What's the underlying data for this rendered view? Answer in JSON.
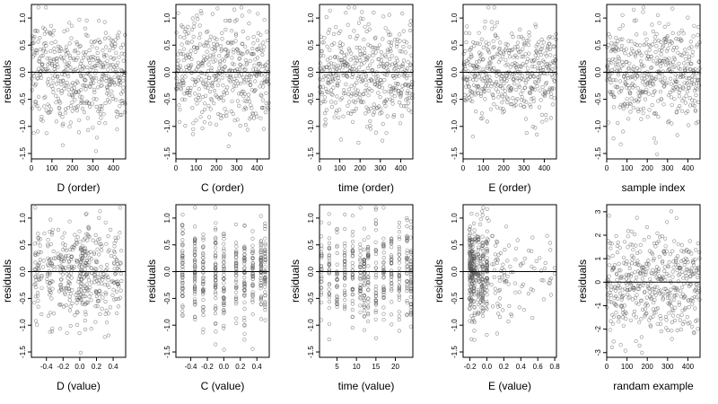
{
  "figure": {
    "layout": "2 rows x 5 columns of residual scatter plots",
    "point_style": "open circles, grey",
    "point_color": "#555555",
    "reference_line": "horizontal line at y = 0",
    "axis_color": "#000000"
  },
  "chart_data": [
    {
      "type": "scatter",
      "panel": 1,
      "xlabel": "D (order)",
      "ylabel": "residuals",
      "x_range": [
        0,
        460
      ],
      "x_ticks": [
        "0",
        "100",
        "200",
        "300",
        "400"
      ],
      "x_tick_values": [
        0,
        100,
        200,
        300,
        400
      ],
      "y_range": [
        -1.6,
        1.25
      ],
      "y_ticks": [
        "-1.5",
        "-1.0",
        "-0.5",
        "0.0",
        "0.5",
        "1.0"
      ],
      "y_tick_values": [
        -1.5,
        -1,
        -0.5,
        0,
        0.5,
        1
      ],
      "zero_line": 0,
      "n_points_approx": 460,
      "x_distribution": "uniform-index",
      "y_spread": 0.45
    },
    {
      "type": "scatter",
      "panel": 2,
      "xlabel": "C (order)",
      "ylabel": "residuals",
      "x_range": [
        0,
        460
      ],
      "x_ticks": [
        "0",
        "100",
        "200",
        "300",
        "400"
      ],
      "x_tick_values": [
        0,
        100,
        200,
        300,
        400
      ],
      "y_range": [
        -1.6,
        1.25
      ],
      "y_ticks": [
        "-1.5",
        "-1.0",
        "-0.5",
        "0.0",
        "0.5",
        "1.0"
      ],
      "y_tick_values": [
        -1.5,
        -1,
        -0.5,
        0,
        0.5,
        1
      ],
      "zero_line": 0,
      "n_points_approx": 460,
      "x_distribution": "uniform-index",
      "y_spread": 0.45
    },
    {
      "type": "scatter",
      "panel": 3,
      "xlabel": "time (order)",
      "ylabel": "residuals",
      "x_range": [
        0,
        460
      ],
      "x_ticks": [
        "0",
        "100",
        "200",
        "300",
        "400"
      ],
      "x_tick_values": [
        0,
        100,
        200,
        300,
        400
      ],
      "y_range": [
        -1.6,
        1.25
      ],
      "y_ticks": [
        "-1.5",
        "-1.0",
        "-0.5",
        "0.0",
        "0.5",
        "1.0"
      ],
      "y_tick_values": [
        -1.5,
        -1,
        -0.5,
        0,
        0.5,
        1
      ],
      "zero_line": 0,
      "n_points_approx": 460,
      "x_distribution": "uniform-index",
      "y_spread": 0.45
    },
    {
      "type": "scatter",
      "panel": 4,
      "xlabel": "E (order)",
      "ylabel": "residuals",
      "x_range": [
        0,
        460
      ],
      "x_ticks": [
        "0",
        "100",
        "200",
        "300",
        "400"
      ],
      "x_tick_values": [
        0,
        100,
        200,
        300,
        400
      ],
      "y_range": [
        -1.6,
        1.25
      ],
      "y_ticks": [
        "-1.5",
        "-1.0",
        "-0.5",
        "0.0",
        "0.5",
        "1.0"
      ],
      "y_tick_values": [
        -1.5,
        -1,
        -0.5,
        0,
        0.5,
        1
      ],
      "zero_line": 0,
      "n_points_approx": 460,
      "x_distribution": "uniform-index",
      "y_spread": 0.45
    },
    {
      "type": "scatter",
      "panel": 5,
      "xlabel": "sample index",
      "ylabel": "residuals",
      "x_range": [
        0,
        460
      ],
      "x_ticks": [
        "0",
        "100",
        "200",
        "300",
        "400"
      ],
      "x_tick_values": [
        0,
        100,
        200,
        300,
        400
      ],
      "y_range": [
        -1.6,
        1.25
      ],
      "y_ticks": [
        "-1.5",
        "-1.0",
        "-0.5",
        "0.0",
        "0.5",
        "1.0"
      ],
      "y_tick_values": [
        -1.5,
        -1,
        -0.5,
        0,
        0.5,
        1
      ],
      "zero_line": 0,
      "n_points_approx": 460,
      "x_distribution": "uniform-index",
      "y_spread": 0.45
    },
    {
      "type": "scatter",
      "panel": 6,
      "xlabel": "D (value)",
      "ylabel": "residuals",
      "x_range": [
        -0.58,
        0.55
      ],
      "x_ticks": [
        "-0.4",
        "-0.2",
        "0.0",
        "0.2",
        "0.4"
      ],
      "x_tick_values": [
        -0.4,
        -0.2,
        0,
        0.2,
        0.4
      ],
      "y_range": [
        -1.6,
        1.25
      ],
      "y_ticks": [
        "-1.5",
        "-1.0",
        "-0.5",
        "0.0",
        "0.5",
        "1.0"
      ],
      "y_tick_values": [
        -1.5,
        -1,
        -0.5,
        0,
        0.5,
        1
      ],
      "zero_line": 0,
      "n_points_approx": 460,
      "x_distribution": "spread-clustered",
      "x_clusters": [
        -0.5,
        -0.35,
        -0.2,
        -0.1,
        0,
        0.05,
        0.1,
        0.2,
        0.3,
        0.45
      ],
      "y_spread": 0.45
    },
    {
      "type": "scatter",
      "panel": 7,
      "xlabel": "C (value)",
      "ylabel": "residuals",
      "x_range": [
        -0.58,
        0.55
      ],
      "x_ticks": [
        "-0.4",
        "-0.2",
        "0.0",
        "0.2",
        "0.4"
      ],
      "x_tick_values": [
        -0.4,
        -0.2,
        0,
        0.2,
        0.4
      ],
      "y_range": [
        -1.6,
        1.25
      ],
      "y_ticks": [
        "-1.5",
        "-1.0",
        "-0.5",
        "0.0",
        "0.5",
        "1.0"
      ],
      "y_tick_values": [
        -1.5,
        -1,
        -0.5,
        0,
        0.5,
        1
      ],
      "zero_line": 0,
      "n_points_approx": 460,
      "x_distribution": "discrete-columns",
      "x_levels": [
        -0.5,
        -0.35,
        -0.25,
        -0.1,
        0,
        0.15,
        0.25,
        0.35,
        0.45,
        0.5
      ],
      "y_spread": 0.45
    },
    {
      "type": "scatter",
      "panel": 8,
      "xlabel": "time (value)",
      "ylabel": "residuals",
      "x_range": [
        0.5,
        24.5
      ],
      "x_ticks": [
        "5",
        "10",
        "15",
        "20"
      ],
      "x_tick_values": [
        5,
        10,
        15,
        20
      ],
      "y_range": [
        -1.6,
        1.25
      ],
      "y_ticks": [
        "-1.5",
        "-1.0",
        "-0.5",
        "0.0",
        "0.5",
        "1.0"
      ],
      "y_tick_values": [
        -1.5,
        -1,
        -0.5,
        0,
        0.5,
        1
      ],
      "zero_line": 0,
      "n_points_approx": 460,
      "x_distribution": "discrete-columns",
      "x_levels": [
        1,
        3,
        5,
        7,
        9,
        11,
        12,
        13,
        15,
        17,
        19,
        21,
        23,
        24
      ],
      "y_spread": 0.45
    },
    {
      "type": "scatter",
      "panel": 9,
      "xlabel": "E (value)",
      "ylabel": "residuals",
      "x_range": [
        -0.28,
        0.82
      ],
      "x_ticks": [
        "-0.2",
        "0.0",
        "0.2",
        "0.4",
        "0.6",
        "0.8"
      ],
      "x_tick_values": [
        -0.2,
        0,
        0.2,
        0.4,
        0.6,
        0.8
      ],
      "y_range": [
        -1.6,
        1.25
      ],
      "y_ticks": [
        "-1.5",
        "-1.0",
        "-0.5",
        "0.0",
        "0.5",
        "1.0"
      ],
      "y_tick_values": [
        -1.5,
        -1,
        -0.5,
        0,
        0.5,
        1
      ],
      "zero_line": 0,
      "n_points_approx": 460,
      "x_distribution": "left-skewed",
      "x_levels": [
        -0.2,
        -0.18,
        -0.15,
        -0.1,
        -0.05,
        0
      ],
      "y_spread": 0.45
    },
    {
      "type": "scatter",
      "panel": 10,
      "xlabel": "randam example",
      "ylabel": "residuals",
      "x_range": [
        0,
        460
      ],
      "x_ticks": [
        "0",
        "100",
        "200",
        "300",
        "400"
      ],
      "x_tick_values": [
        0,
        100,
        200,
        300,
        400
      ],
      "y_range": [
        -3.2,
        3.3
      ],
      "y_ticks": [
        "-3",
        "-2",
        "-1",
        "0",
        "1",
        "2",
        "3"
      ],
      "y_tick_values": [
        -3,
        -2,
        -1,
        0,
        1,
        2,
        3
      ],
      "zero_line": 0,
      "n_points_approx": 460,
      "x_distribution": "uniform-index",
      "y_spread": 1.0
    }
  ]
}
